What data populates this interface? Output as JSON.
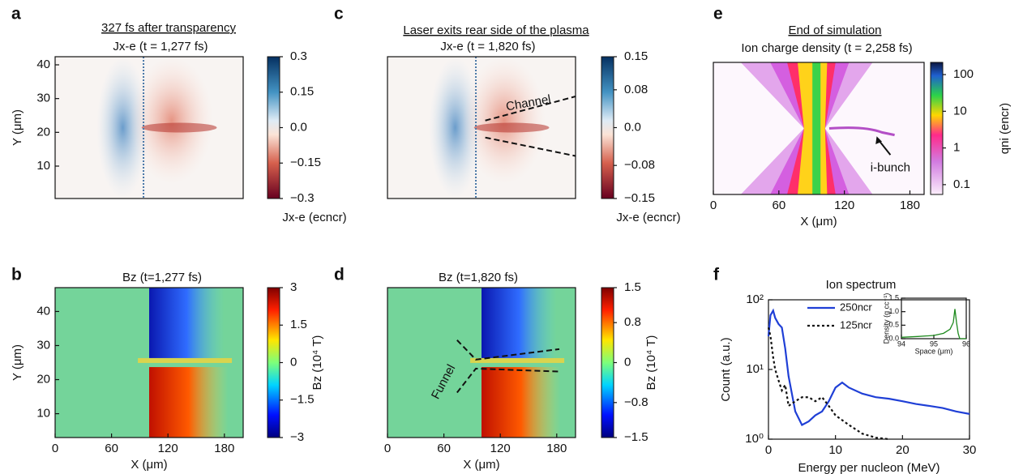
{
  "chart_data": [
    {
      "panel": "a",
      "type": "heatmap",
      "title": "327 fs after transparency",
      "subtitle": "Jx-e (t = 1,277 fs)",
      "ylabel": "Y (μm)",
      "xlim": [
        0,
        200
      ],
      "ylim": [
        0.4,
        42.4
      ],
      "yticks": [
        10,
        20,
        30,
        40
      ],
      "colormap": "RdBu",
      "colorbar": {
        "label": "Jx-e (ecncr)",
        "lim": [
          -0.3,
          0.3
        ],
        "ticks": [
          {
            "value": -0.3,
            "label": "−0.3"
          },
          {
            "value": -0.15,
            "label": "−0.15"
          },
          {
            "value": 0,
            "label": "0.0"
          },
          0.15,
          0.3
        ]
      }
    },
    {
      "panel": "b",
      "type": "heatmap",
      "title": "Bz (t=1,277 fs)",
      "xlabel": "X (μm)",
      "ylabel": "Y (μm)",
      "xlim": [
        0,
        200
      ],
      "ylim": [
        3,
        47
      ],
      "xticks": [
        0,
        60,
        120,
        180
      ],
      "yticks": [
        10,
        20,
        30,
        40
      ],
      "colormap": "jet",
      "colorbar": {
        "label": "Bz (10⁴ T)",
        "lim": [
          -3,
          3
        ],
        "ticks": [
          {
            "value": -3,
            "label": "−3"
          },
          {
            "value": -1.5,
            "label": "−1.5"
          },
          0,
          1.5,
          3
        ]
      }
    },
    {
      "panel": "c",
      "type": "heatmap",
      "title": "Laser exits rear side of the plasma",
      "subtitle": "Jx-e (t = 1,820 fs)",
      "xlim": [
        0,
        200
      ],
      "ylim": [
        0.4,
        42.4
      ],
      "colormap": "RdBu",
      "annotations": [
        "Channel"
      ],
      "colorbar": {
        "label": "Jx-e (ecncr)",
        "lim": [
          -0.15,
          0.15
        ],
        "ticks": [
          {
            "value": -0.15,
            "label": "−0.15"
          },
          {
            "value": -0.08,
            "label": "−0.08"
          },
          {
            "value": 0,
            "label": "0.0"
          },
          0.08,
          0.15
        ]
      }
    },
    {
      "panel": "d",
      "type": "heatmap",
      "title": "Bz (t=1,820 fs)",
      "xlabel": "X (μm)",
      "xlim": [
        0,
        200
      ],
      "ylim": [
        3,
        47
      ],
      "xticks": [
        0,
        60,
        120,
        180
      ],
      "colormap": "jet",
      "annotations": [
        "Funnel"
      ],
      "colorbar": {
        "label": "Bz (10⁴ T)",
        "lim": [
          -1.5,
          1.5
        ],
        "ticks": [
          {
            "value": -1.5,
            "label": "−1.5"
          },
          {
            "value": -0.8,
            "label": "−0.8"
          },
          0,
          0.8,
          1.5
        ]
      }
    },
    {
      "panel": "e",
      "type": "heatmap",
      "title": "End of simulation",
      "subtitle": "Ion charge density (t = 2,258 fs)",
      "xlabel": "X (μm)",
      "xlim": [
        0,
        193
      ],
      "xticks": [
        0,
        60,
        120,
        180
      ],
      "colormap": "ion",
      "annotations": [
        "i-bunch"
      ],
      "colorbar": {
        "label": "qni (encr)",
        "scale": "log",
        "lim": [
          0.054,
          215
        ],
        "ticks": [
          0.1,
          1,
          10,
          100
        ]
      }
    },
    {
      "panel": "f",
      "type": "line",
      "title": "Ion spectrum",
      "xlabel": "Energy per nucleon (MeV)",
      "ylabel": "Count (a.u.)",
      "xlim": [
        0,
        30
      ],
      "xticks": [
        0,
        10,
        20,
        30
      ],
      "yscale": "log",
      "ylim": [
        1,
        100
      ],
      "yticks": [
        {
          "value": 1,
          "label": "10⁰"
        },
        {
          "value": 10,
          "label": "10¹"
        },
        {
          "value": 100,
          "label": "10²"
        }
      ],
      "series": [
        {
          "name": "250ncr",
          "color": "#1f3fd6",
          "linestyle": "solid",
          "x": [
            0,
            0.3,
            0.7,
            1,
            1.5,
            2,
            2.5,
            3,
            4,
            5,
            6,
            7,
            8,
            9,
            10,
            11,
            12,
            14,
            16,
            18,
            20,
            22,
            24,
            26,
            28,
            30
          ],
          "values": [
            30,
            60,
            70,
            55,
            45,
            40,
            20,
            8,
            2.5,
            1.6,
            1.8,
            2.2,
            2.5,
            3.5,
            5.5,
            6.5,
            5.5,
            4.5,
            4,
            3.8,
            3.5,
            3.2,
            3,
            2.8,
            2.5,
            2.3
          ]
        },
        {
          "name": "125ncr",
          "color": "#111111",
          "linestyle": "dotted",
          "x": [
            0,
            0.3,
            0.7,
            1,
            1.5,
            2,
            2.5,
            3,
            4,
            5,
            6,
            7,
            8,
            9,
            10,
            12,
            14,
            16,
            18
          ],
          "values": [
            40,
            30,
            15,
            10,
            7,
            5,
            6,
            3,
            3.5,
            4,
            4,
            3.5,
            4,
            3,
            2.2,
            1.6,
            1.2,
            1.05,
            1
          ]
        }
      ],
      "inset": {
        "type": "line",
        "xlabel": "Space (μm)",
        "ylabel": "Density (g cc⁻¹)",
        "xlim": [
          94,
          96
        ],
        "xticks": [
          94,
          95,
          96
        ],
        "ylim": [
          0,
          1.5
        ],
        "yticks": [
          {
            "value": 0,
            "label": "0.0"
          },
          0.5,
          {
            "value": 1,
            "label": "1.0"
          },
          1.5
        ],
        "series": [
          {
            "color": "#1e8a1e",
            "x": [
              94,
              94.5,
              95,
              95.3,
              95.5,
              95.6,
              95.65,
              95.7,
              95.75,
              95.8,
              96
            ],
            "values": [
              0.05,
              0.08,
              0.12,
              0.2,
              0.35,
              0.6,
              1.1,
              0.6,
              0.2,
              0,
              0
            ]
          }
        ]
      }
    }
  ]
}
